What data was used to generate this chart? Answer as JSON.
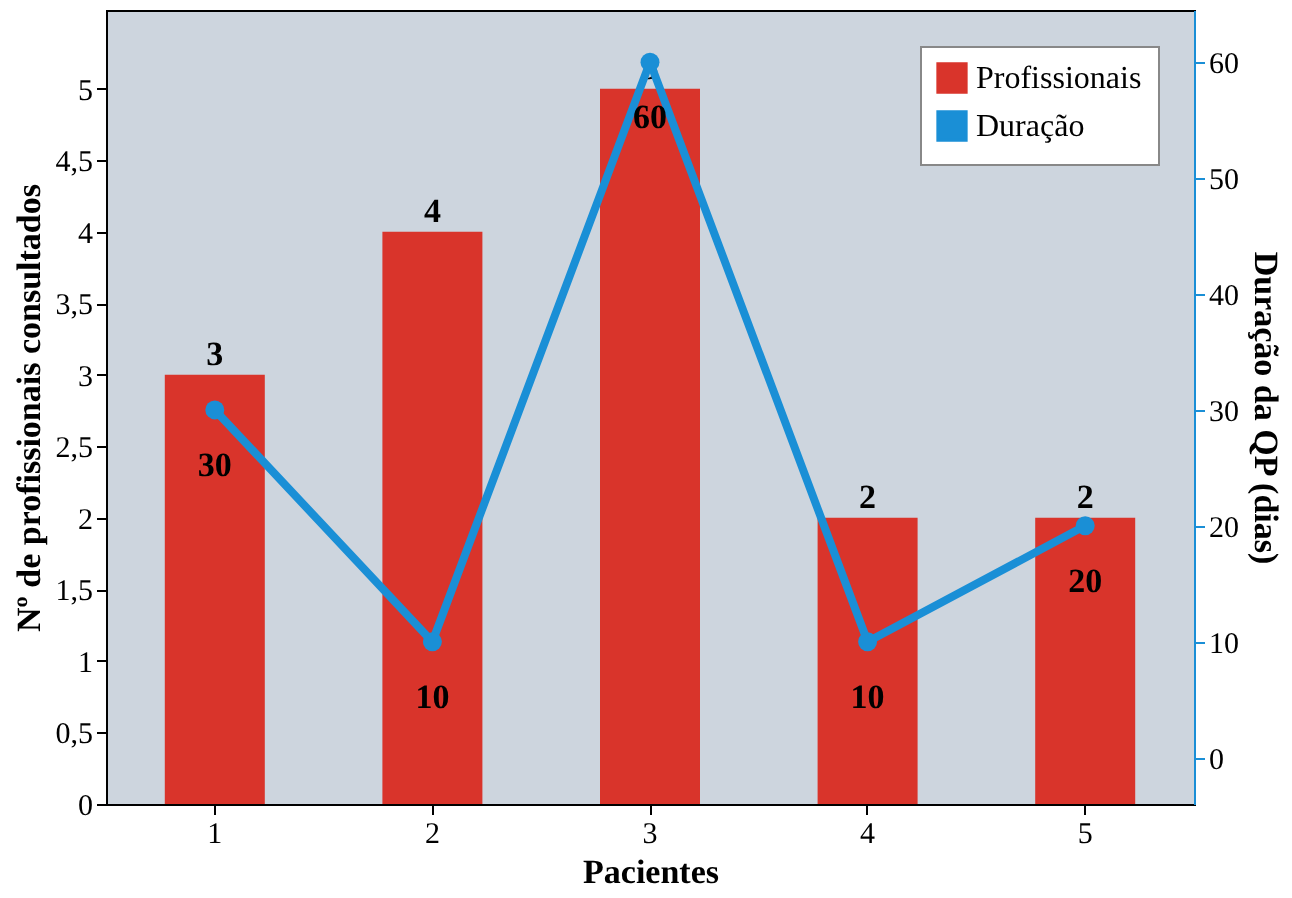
{
  "chart_data": {
    "type": "bar",
    "categories": [
      "1",
      "2",
      "3",
      "4",
      "5"
    ],
    "xlabel": "Pacientes",
    "ylabel": "Nº de profissionais consultados",
    "y2label": "Duração da QP (dias)",
    "series": [
      {
        "name": "Profissionais",
        "color": "#d9342b",
        "values": [
          3,
          4,
          5,
          2,
          2
        ]
      },
      {
        "name": "Duração",
        "type": "line",
        "axis": "y2",
        "color": "#1a8fd6",
        "values": [
          30,
          10,
          60,
          10,
          20
        ]
      }
    ],
    "ylim": [
      0,
      5.55
    ],
    "yticks": [
      0,
      {
        "value": 0.5,
        "label": "0,5"
      },
      1,
      {
        "value": 1.5,
        "label": "1,5"
      },
      2,
      {
        "value": 2.5,
        "label": "2,5"
      },
      3,
      {
        "value": 3.5,
        "label": "3,5"
      },
      4,
      {
        "value": 4.5,
        "label": "4,5"
      },
      5
    ],
    "y2lim": [
      -4,
      64.5
    ],
    "y2ticks": [
      0,
      10,
      20,
      30,
      40,
      50,
      60
    ],
    "data_labels": true,
    "legend": "top right",
    "marker": "circle",
    "line_style": "solid",
    "grid": false
  }
}
